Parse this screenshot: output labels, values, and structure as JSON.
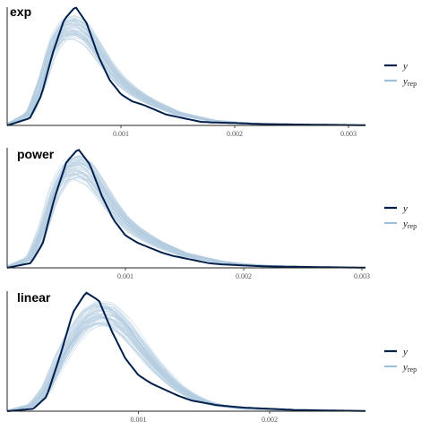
{
  "chart_data": [
    {
      "type": "area",
      "title": "exp",
      "x_range": [
        0,
        0.00315
      ],
      "x_ticks": [
        {
          "value": 0.001,
          "label": "0.001"
        },
        {
          "value": 0.002,
          "label": "0.002"
        },
        {
          "value": 0.003,
          "label": "0.003"
        }
      ],
      "y_range": [
        0,
        1
      ],
      "y": {
        "x": [
          0.0,
          0.0002,
          0.0003,
          0.0004,
          0.0005,
          0.0006,
          0.0007,
          0.0008,
          0.0009,
          0.001,
          0.0011,
          0.0012,
          0.0013,
          0.0014,
          0.0015,
          0.0016,
          0.0017,
          0.0018,
          0.002,
          0.0022,
          0.0025,
          0.0028,
          0.00315
        ],
        "y": [
          0.0,
          0.06,
          0.25,
          0.6,
          0.88,
          0.99,
          0.85,
          0.58,
          0.38,
          0.26,
          0.2,
          0.17,
          0.13,
          0.09,
          0.07,
          0.05,
          0.03,
          0.025,
          0.02,
          0.012,
          0.008,
          0.005,
          0.002
        ]
      },
      "y_rep": {
        "x": [
          0.0,
          0.0002,
          0.0003,
          0.0004,
          0.0005,
          0.0006,
          0.0007,
          0.0008,
          0.0009,
          0.001,
          0.0011,
          0.0012,
          0.0013,
          0.0014,
          0.0015,
          0.0016,
          0.0017,
          0.0018,
          0.002,
          0.0022,
          0.0025,
          0.0028,
          0.00315
        ],
        "y": [
          0.0,
          0.1,
          0.35,
          0.66,
          0.8,
          0.82,
          0.76,
          0.62,
          0.48,
          0.37,
          0.29,
          0.23,
          0.18,
          0.14,
          0.1,
          0.08,
          0.06,
          0.04,
          0.025,
          0.015,
          0.008,
          0.004,
          0.002
        ]
      },
      "y_rep_draws": 60
    },
    {
      "type": "area",
      "title": "power",
      "x_range": [
        0,
        0.00303
      ],
      "x_ticks": [
        {
          "value": 0.001,
          "label": "0.001"
        },
        {
          "value": 0.002,
          "label": "0.002"
        },
        {
          "value": 0.003,
          "label": "0.003"
        }
      ],
      "y_range": [
        0,
        1
      ],
      "y": {
        "x": [
          0.0,
          0.0002,
          0.0003,
          0.0004,
          0.0005,
          0.0006,
          0.0007,
          0.0008,
          0.0009,
          0.001,
          0.0011,
          0.0012,
          0.0013,
          0.0014,
          0.0015,
          0.0016,
          0.0017,
          0.0018,
          0.002,
          0.0022,
          0.0025,
          0.0028,
          0.00303
        ],
        "y": [
          0.0,
          0.04,
          0.2,
          0.58,
          0.88,
          0.99,
          0.86,
          0.6,
          0.4,
          0.27,
          0.21,
          0.17,
          0.13,
          0.1,
          0.08,
          0.06,
          0.04,
          0.03,
          0.02,
          0.012,
          0.008,
          0.004,
          0.002
        ]
      },
      "y_rep": {
        "x": [
          0.0,
          0.0002,
          0.0003,
          0.0004,
          0.0005,
          0.0006,
          0.0007,
          0.0008,
          0.0009,
          0.001,
          0.0011,
          0.0012,
          0.0013,
          0.0014,
          0.0015,
          0.0016,
          0.0017,
          0.0018,
          0.002,
          0.0022,
          0.0025,
          0.0028,
          0.00303
        ],
        "y": [
          0.0,
          0.08,
          0.3,
          0.62,
          0.8,
          0.84,
          0.78,
          0.64,
          0.5,
          0.38,
          0.3,
          0.24,
          0.19,
          0.15,
          0.11,
          0.09,
          0.07,
          0.05,
          0.03,
          0.018,
          0.009,
          0.004,
          0.002
        ]
      },
      "y_rep_draws": 60
    },
    {
      "type": "area",
      "title": "linear",
      "x_range": [
        0,
        0.00273
      ],
      "x_ticks": [
        {
          "value": 0.001,
          "label": "0.001"
        },
        {
          "value": 0.002,
          "label": "0.002"
        }
      ],
      "y_range": [
        0,
        1
      ],
      "y": {
        "x": [
          0.0,
          0.0002,
          0.0003,
          0.0004,
          0.0005,
          0.0006,
          0.0007,
          0.0008,
          0.0009,
          0.001,
          0.0011,
          0.0012,
          0.0013,
          0.0014,
          0.0015,
          0.0016,
          0.0017,
          0.0018,
          0.002,
          0.0022,
          0.0025,
          0.00273
        ],
        "y": [
          0.0,
          0.02,
          0.12,
          0.45,
          0.82,
          0.99,
          0.92,
          0.66,
          0.44,
          0.3,
          0.23,
          0.18,
          0.13,
          0.09,
          0.07,
          0.05,
          0.04,
          0.03,
          0.02,
          0.01,
          0.005,
          0.002
        ]
      },
      "y_rep": {
        "x": [
          0.0,
          0.0002,
          0.0003,
          0.0004,
          0.0005,
          0.0006,
          0.0007,
          0.0008,
          0.0009,
          0.001,
          0.0011,
          0.0012,
          0.0013,
          0.0014,
          0.0015,
          0.0016,
          0.0017,
          0.0018,
          0.002,
          0.0022,
          0.0025,
          0.00273
        ],
        "y": [
          0.0,
          0.05,
          0.18,
          0.42,
          0.62,
          0.76,
          0.82,
          0.8,
          0.7,
          0.56,
          0.42,
          0.3,
          0.2,
          0.13,
          0.08,
          0.05,
          0.035,
          0.02,
          0.012,
          0.006,
          0.003,
          0.001
        ]
      },
      "y_rep_draws": 60
    }
  ],
  "legend": {
    "y_label": "y",
    "y_rep_label": "y",
    "y_rep_subscript": "rep"
  },
  "colors": {
    "y": "#011f4b",
    "y_rep_light": "#b3cde0",
    "y_rep_legend": "#9ebfd9",
    "axis": "#222222",
    "tick_label": "#555555"
  }
}
